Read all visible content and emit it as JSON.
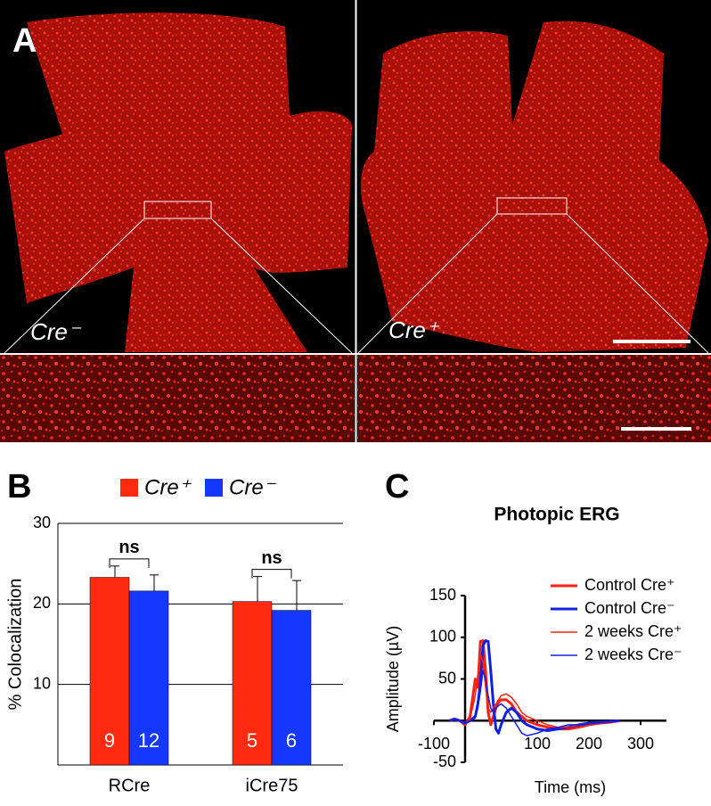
{
  "panel_a": {
    "label": "A",
    "left_label": "Cre⁻",
    "right_label": "Cre⁺"
  },
  "chart_data": [
    {
      "type": "bar",
      "label": "B",
      "ylabel": "% Colocalization",
      "categories": [
        "RCre",
        "iCre75"
      ],
      "series": [
        {
          "name": "Cre⁺",
          "color": "#ff2a10",
          "values": [
            23.3,
            20.3
          ],
          "errors": [
            1.4,
            3.1
          ],
          "counts": [
            "9",
            "5"
          ]
        },
        {
          "name": "Cre⁻",
          "color": "#1438ff",
          "values": [
            21.6,
            19.2
          ],
          "errors": [
            2.0,
            3.7
          ],
          "counts": [
            "12",
            "6"
          ]
        }
      ],
      "annotations": [
        "ns",
        "ns"
      ],
      "ylim": [
        0,
        30
      ],
      "yticks": [
        10,
        20,
        30
      ],
      "grid": true
    },
    {
      "type": "line",
      "label": "C",
      "title": "Photopic ERG",
      "xlabel": "Time (ms)",
      "ylabel": "Amplitude (µV)",
      "x": [
        -70,
        -60,
        -50,
        -40,
        -30,
        -20,
        -15,
        -10,
        -5,
        0,
        5,
        10,
        15,
        20,
        25,
        30,
        40,
        50,
        60,
        70,
        80,
        100,
        120,
        140,
        160,
        180,
        200,
        220,
        240,
        260
      ],
      "series": [
        {
          "name": "Control Cre⁺",
          "color": "#ff2010",
          "line_width": 3,
          "values": [
            0,
            2,
            0,
            -5,
            5,
            50,
            40,
            95,
            96,
            60,
            10,
            -5,
            5,
            15,
            22,
            25,
            25,
            20,
            10,
            5,
            0,
            -5,
            -8,
            -10,
            -10,
            -8,
            -5,
            -3,
            -2,
            0
          ]
        },
        {
          "name": "Control Cre⁻",
          "color": "#1020e0",
          "line_width": 3,
          "values": [
            0,
            2,
            0,
            -3,
            0,
            5,
            20,
            45,
            90,
            96,
            95,
            60,
            20,
            -10,
            -15,
            -5,
            10,
            15,
            10,
            0,
            -5,
            -10,
            -12,
            -10,
            -8,
            -5,
            -3,
            -2,
            -1,
            0
          ]
        },
        {
          "name": "2 weeks Cre⁺",
          "color": "#ff2010",
          "line_width": 1.5,
          "values": [
            0,
            1,
            0,
            -2,
            2,
            30,
            55,
            80,
            70,
            40,
            15,
            10,
            15,
            20,
            25,
            30,
            32,
            28,
            20,
            10,
            5,
            0,
            -5,
            -8,
            -8,
            -5,
            -3,
            -2,
            -1,
            0
          ]
        },
        {
          "name": "2 weeks Cre⁻",
          "color": "#1020e0",
          "line_width": 1.5,
          "values": [
            0,
            1,
            0,
            -2,
            0,
            3,
            15,
            35,
            60,
            50,
            30,
            15,
            10,
            15,
            18,
            20,
            15,
            5,
            -5,
            -15,
            -18,
            -15,
            -10,
            -8,
            -5,
            -5,
            -3,
            -2,
            -1,
            0
          ]
        }
      ],
      "xlim": [
        -100,
        350
      ],
      "ylim": [
        -50,
        150
      ],
      "xticks": [
        -100,
        100,
        200,
        300
      ],
      "yticks": [
        -50,
        50,
        100,
        150
      ],
      "grid": false
    }
  ]
}
